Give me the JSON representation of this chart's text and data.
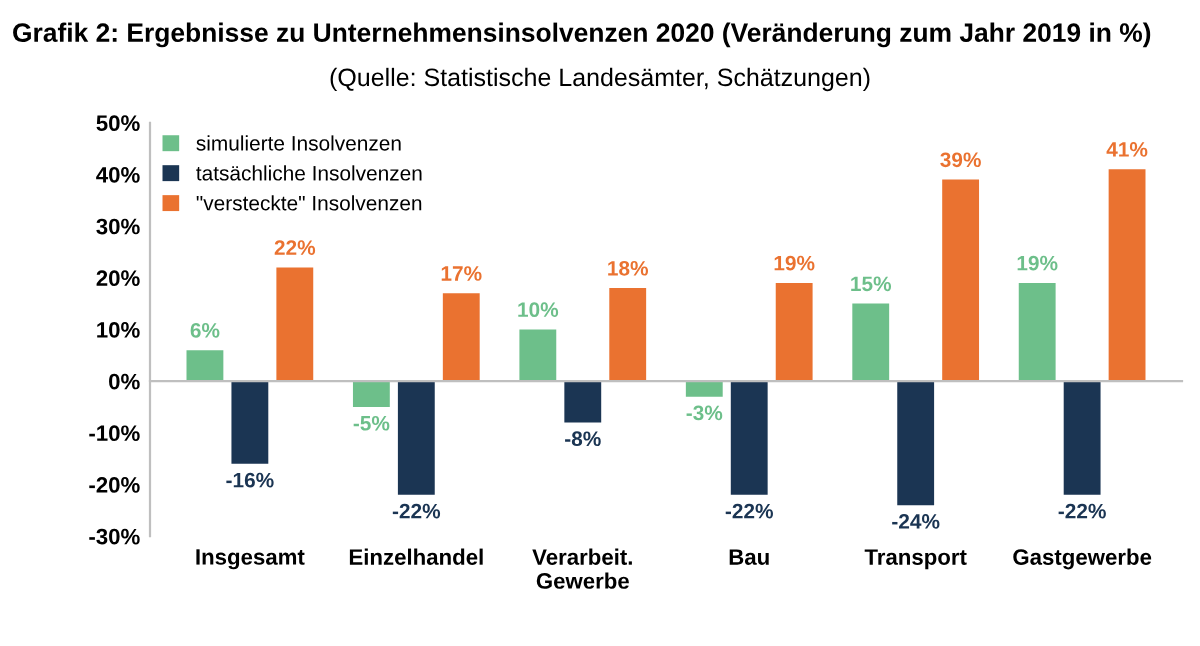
{
  "chart_data": {
    "type": "bar",
    "title": "Grafik 2: Ergebnisse zu Unternehmensinsolvenzen 2020 (Veränderung zum Jahr 2019 in %)",
    "subtitle": "(Quelle: Statistische Landesämter, Schätzungen)",
    "categories": [
      "Insgesamt",
      "Einzelhandel",
      "Verarbeit.\nGewerbe",
      "Bau",
      "Transport",
      "Gastgewerbe"
    ],
    "series": [
      {
        "name": "simulierte Insolvenzen",
        "color": "#6dbf8a",
        "values": [
          6,
          -5,
          10,
          -3,
          15,
          19
        ],
        "value_labels": [
          "6%",
          "-5%",
          "10%",
          "-3%",
          "15%",
          "19%"
        ]
      },
      {
        "name": "tatsächliche Insolvenzen",
        "color": "#1b3553",
        "values": [
          -16,
          -22,
          -8,
          -22,
          -24,
          -22
        ],
        "value_labels": [
          "-16%",
          "-22%",
          "-8%",
          "-22%",
          "-24%",
          "-22%"
        ]
      },
      {
        "name": "\"versteckte\" Insolvenzen",
        "color": "#ea7230",
        "values": [
          22,
          17,
          18,
          19,
          39,
          41
        ],
        "value_labels": [
          "22%",
          "17%",
          "18%",
          "19%",
          "39%",
          "41%"
        ]
      }
    ],
    "ylim": [
      -30,
      50
    ],
    "yticks": [
      {
        "value": 50,
        "label": "50%"
      },
      {
        "value": 40,
        "label": "40%"
      },
      {
        "value": 30,
        "label": "30%"
      },
      {
        "value": 20,
        "label": "20%"
      },
      {
        "value": 10,
        "label": "10%"
      },
      {
        "value": 0,
        "label": "0%"
      },
      {
        "value": -10,
        "label": "-10%"
      },
      {
        "value": -20,
        "label": "-20%"
      },
      {
        "value": -30,
        "label": "-30%"
      }
    ],
    "legend": "top left"
  }
}
